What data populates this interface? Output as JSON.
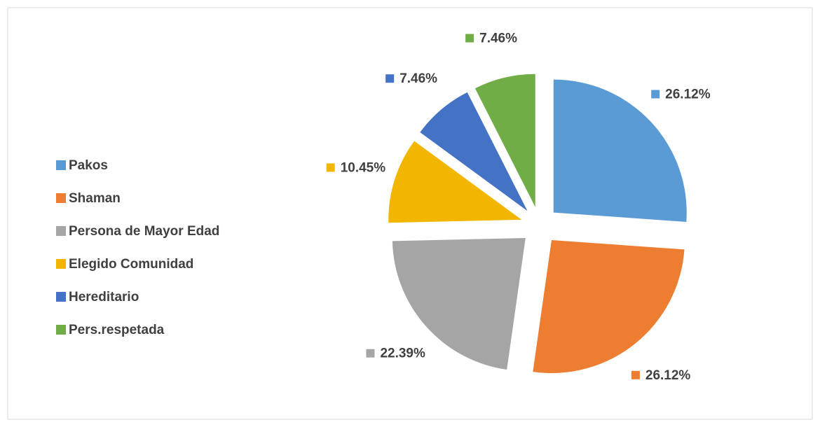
{
  "chart_data": {
    "type": "pie",
    "categories": [
      "Pakos",
      "Shaman",
      "Persona de Mayor Edad",
      "Elegido Comunidad",
      "Hereditario",
      "Pers.respetada"
    ],
    "values": [
      26.12,
      26.12,
      22.39,
      10.45,
      7.46,
      7.46
    ],
    "value_labels": [
      "26.12%",
      "26.12%",
      "22.39%",
      "10.45%",
      "7.46%",
      "7.46%"
    ],
    "colors": [
      "#5b9bd5",
      "#ed7d31",
      "#a5a5a5",
      "#f2b500",
      "#4472c4",
      "#70ad47"
    ],
    "legend": "left"
  }
}
